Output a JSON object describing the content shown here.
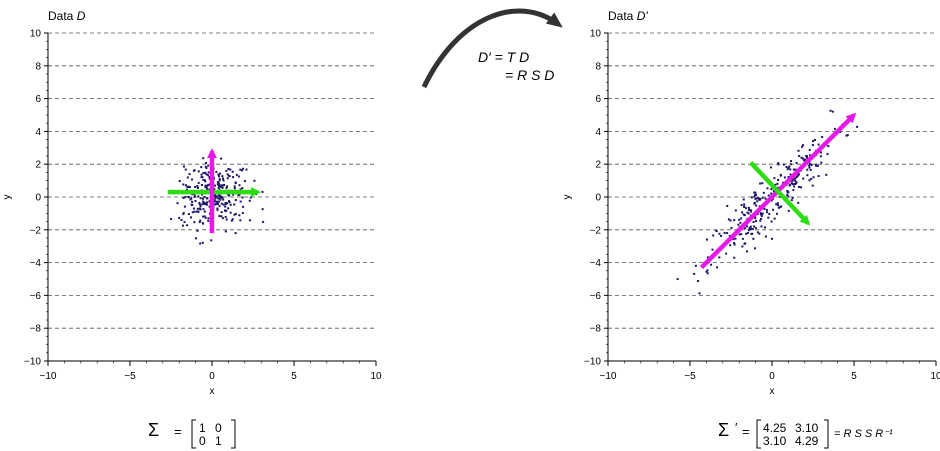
{
  "chart_data": [
    {
      "type": "scatter",
      "title_main": "Data",
      "title_var": "D",
      "xlabel": "x",
      "ylabel": "y",
      "xlim": [
        -10,
        10
      ],
      "ylim": [
        -10,
        10
      ],
      "xticks": [
        -10,
        -5,
        0,
        5,
        10
      ],
      "yticks": [
        -10,
        -8,
        -6,
        -4,
        -2,
        0,
        2,
        4,
        6,
        8,
        10
      ],
      "grid": "horizontal dashed",
      "point_color": "#1b1464",
      "points_generation": {
        "n": 300,
        "sx": 1.0,
        "sy": 1.0,
        "rotation_deg": 0,
        "seed": 7
      },
      "arrows": [
        {
          "from": [
            -2.7,
            0.3
          ],
          "to": [
            2.8,
            0.3
          ],
          "color": "#2ddc11"
        },
        {
          "from": [
            0,
            -2.2
          ],
          "to": [
            0,
            2.8
          ],
          "color": "#e619e6"
        }
      ],
      "covariance": {
        "symbol": "Σ",
        "prime": "",
        "matrix": [
          [
            "1",
            "0"
          ],
          [
            "0",
            "1"
          ]
        ],
        "suffix": ""
      }
    },
    {
      "type": "scatter",
      "title_main": "Data",
      "title_var": "D'",
      "xlabel": "x",
      "ylabel": "y",
      "xlim": [
        -10,
        10
      ],
      "ylim": [
        -10,
        10
      ],
      "xticks": [
        -10,
        -5,
        0,
        5,
        10
      ],
      "yticks": [
        -10,
        -8,
        -6,
        -4,
        -2,
        0,
        2,
        4,
        6,
        8,
        10
      ],
      "grid": "horizontal dashed",
      "point_color": "#1b1464",
      "points_generation": {
        "n": 300,
        "sx": 2.7,
        "sy": 0.6,
        "rotation_deg": 45,
        "seed": 11
      },
      "arrows": [
        {
          "from": [
            -4.3,
            -4.3
          ],
          "to": [
            5.0,
            5.0
          ],
          "color": "#e619e6"
        },
        {
          "from": [
            -1.3,
            2.1
          ],
          "to": [
            2.2,
            -1.6
          ],
          "color": "#2ddc11"
        }
      ],
      "covariance": {
        "symbol": "Σ",
        "prime": "′",
        "matrix": [
          [
            "4.25",
            "3.10"
          ],
          [
            "3.10",
            "4.29"
          ]
        ],
        "suffix": "= R S S R⁻¹"
      }
    }
  ],
  "transform": {
    "line1": "D′ = T D",
    "line2": "= R S D",
    "arrow_color": "#333333"
  }
}
